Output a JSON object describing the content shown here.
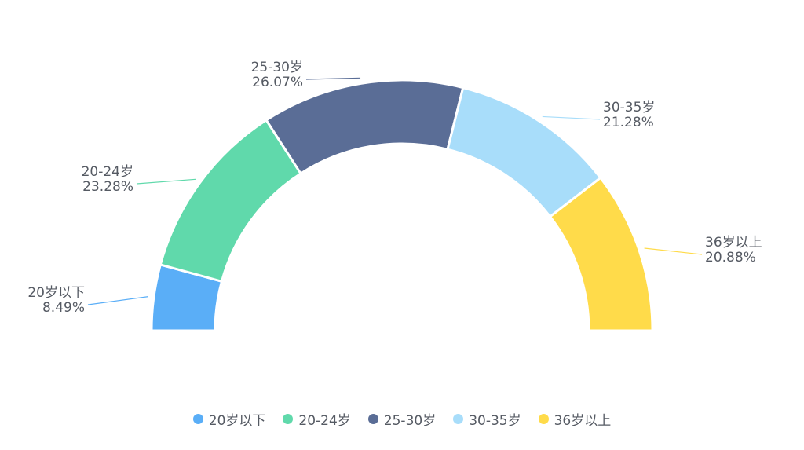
{
  "chart_data": {
    "type": "pie",
    "variant": "half-donut",
    "start_angle_deg": 180,
    "end_angle_deg": 0,
    "legend_position": "bottom",
    "categories": [
      "20岁以下",
      "20-24岁",
      "25-30岁",
      "30-35岁",
      "36岁以上"
    ],
    "values": [
      8.49,
      23.28,
      26.07,
      21.28,
      20.88
    ],
    "value_labels": [
      "8.49%",
      "23.28%",
      "26.07%",
      "21.28%",
      "20.88%"
    ],
    "colors": [
      "#5aaef7",
      "#60d9ab",
      "#5a6d96",
      "#a8ddfa",
      "#ffdb4a"
    ]
  },
  "legend": {
    "items": [
      {
        "label": "20岁以下",
        "color": "#5aaef7"
      },
      {
        "label": "20-24岁",
        "color": "#60d9ab"
      },
      {
        "label": "25-30岁",
        "color": "#5a6d96"
      },
      {
        "label": "30-35岁",
        "color": "#a8ddfa"
      },
      {
        "label": "36岁以上",
        "color": "#ffdb4a"
      }
    ]
  }
}
